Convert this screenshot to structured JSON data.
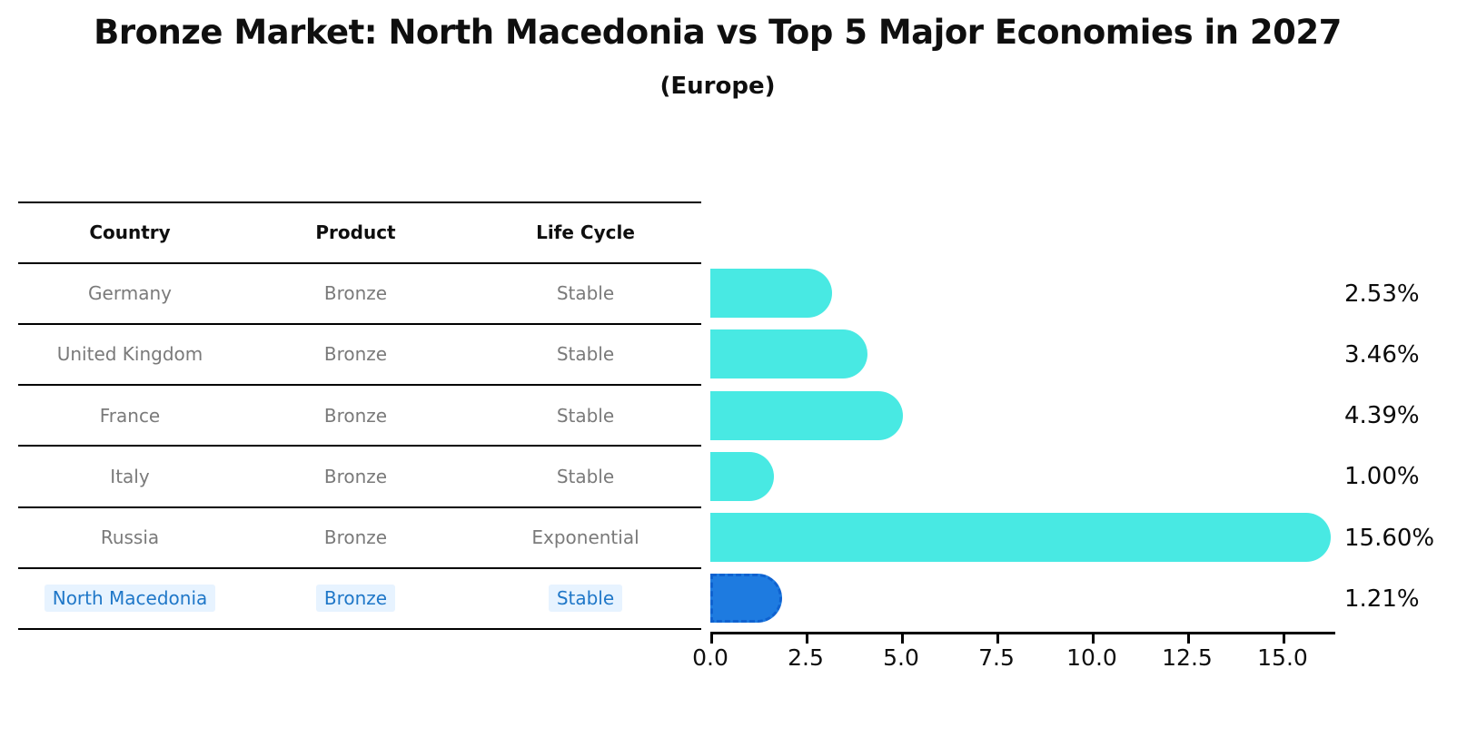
{
  "title": "Bronze Market: North Macedonia vs Top 5 Major Economies in 2027",
  "subtitle": "(Europe)",
  "table": {
    "headers": [
      "Country",
      "Product",
      "Life Cycle"
    ],
    "rows": [
      {
        "country": "Germany",
        "product": "Bronze",
        "life_cycle": "Stable",
        "highlight": false
      },
      {
        "country": "United Kingdom",
        "product": "Bronze",
        "life_cycle": "Stable",
        "highlight": false
      },
      {
        "country": "France",
        "product": "Bronze",
        "life_cycle": "Stable",
        "highlight": false
      },
      {
        "country": "Italy",
        "product": "Bronze",
        "life_cycle": "Stable",
        "highlight": false
      },
      {
        "country": "Russia",
        "product": "Bronze",
        "life_cycle": "Exponential",
        "highlight": false
      },
      {
        "country": "North Macedonia",
        "product": "Bronze",
        "life_cycle": "Stable",
        "highlight": true
      }
    ]
  },
  "chart_data": {
    "type": "bar",
    "orientation": "horizontal",
    "title": "Bronze Market: North Macedonia vs Top 5 Major Economies in 2027 (Europe)",
    "categories": [
      "Germany",
      "United Kingdom",
      "France",
      "Italy",
      "Russia",
      "North Macedonia"
    ],
    "values": [
      2.53,
      3.46,
      4.39,
      1.0,
      15.6,
      1.21
    ],
    "value_labels": [
      "2.53%",
      "3.46%",
      "4.39%",
      "1.00%",
      "15.60%",
      "1.21%"
    ],
    "x_ticks": [
      0.0,
      2.5,
      5.0,
      7.5,
      10.0,
      12.5,
      15.0
    ],
    "x_tick_labels": [
      "0.0",
      "2.5",
      "5.0",
      "7.5",
      "10.0",
      "12.5",
      "15.0"
    ],
    "xlim": [
      0,
      16.4
    ],
    "grid": false,
    "legend": "none",
    "highlight_index": 5
  },
  "colors": {
    "bar": "#48e9e3",
    "highlight_bar": "#1e7be0",
    "highlight_border": "#0f62d0",
    "highlight_text": "#1f77c8",
    "table_text": "#7a7a7a",
    "axis_text": "#0f0f0f"
  }
}
